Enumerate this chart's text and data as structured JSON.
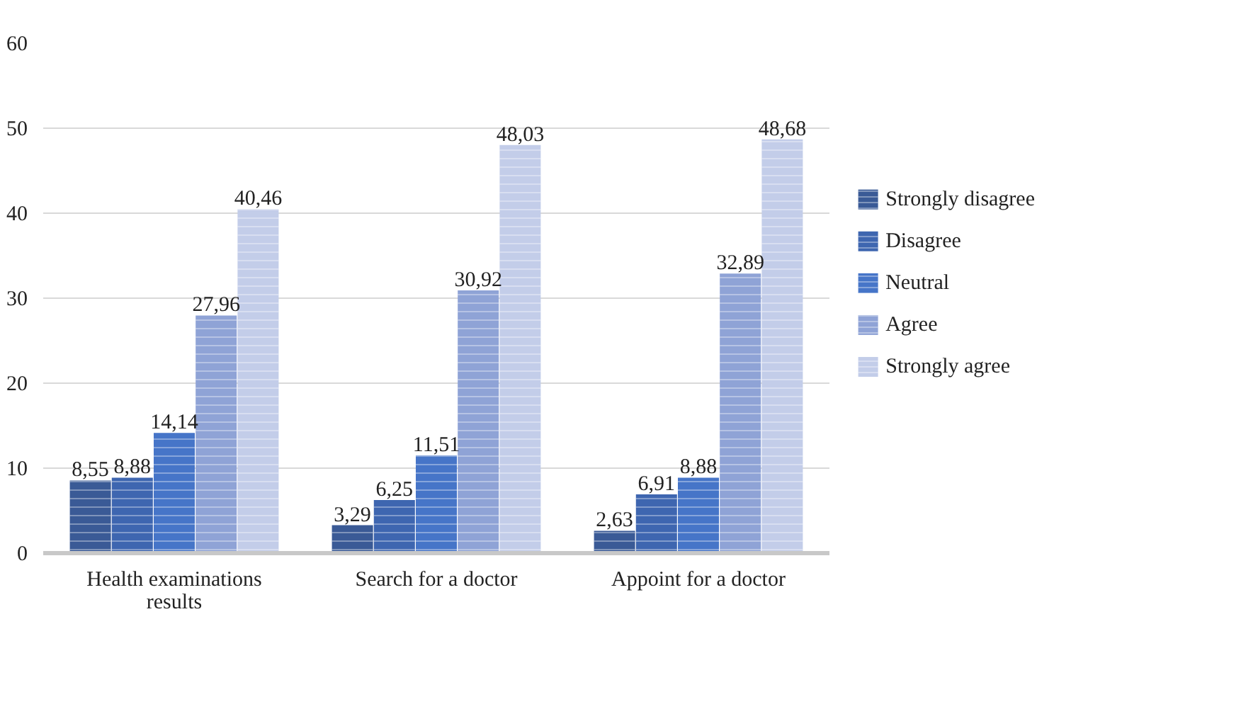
{
  "chart_data": {
    "type": "bar",
    "categories": [
      "Health examinations results",
      "Search for a doctor",
      "Appoint for a doctor"
    ],
    "series": [
      {
        "name": "Strongly disagree",
        "color": "#3a5a96",
        "values": [
          8.55,
          3.29,
          2.63
        ],
        "value_labels": [
          "8,55",
          "3,29",
          "2,63"
        ]
      },
      {
        "name": "Disagree",
        "color": "#3e66b0",
        "values": [
          8.88,
          6.25,
          6.91
        ],
        "value_labels": [
          "8,88",
          "6,25",
          "6,91"
        ]
      },
      {
        "name": "Neutral",
        "color": "#4675c8",
        "values": [
          14.14,
          11.51,
          8.88
        ],
        "value_labels": [
          "14,14",
          "11,51",
          "8,88"
        ]
      },
      {
        "name": "Agree",
        "color": "#8fa3d6",
        "values": [
          27.96,
          30.92,
          32.89
        ],
        "value_labels": [
          "27,96",
          "30,92",
          "32,89"
        ]
      },
      {
        "name": "Strongly agree",
        "color": "#c3cde9",
        "values": [
          40.46,
          48.03,
          48.68
        ],
        "value_labels": [
          "40,46",
          "48,03",
          "48,68"
        ]
      }
    ],
    "ylim": [
      0,
      60
    ],
    "yticks": [
      0,
      10,
      20,
      30,
      40,
      50,
      60
    ],
    "grid": "y",
    "legend": "right"
  }
}
